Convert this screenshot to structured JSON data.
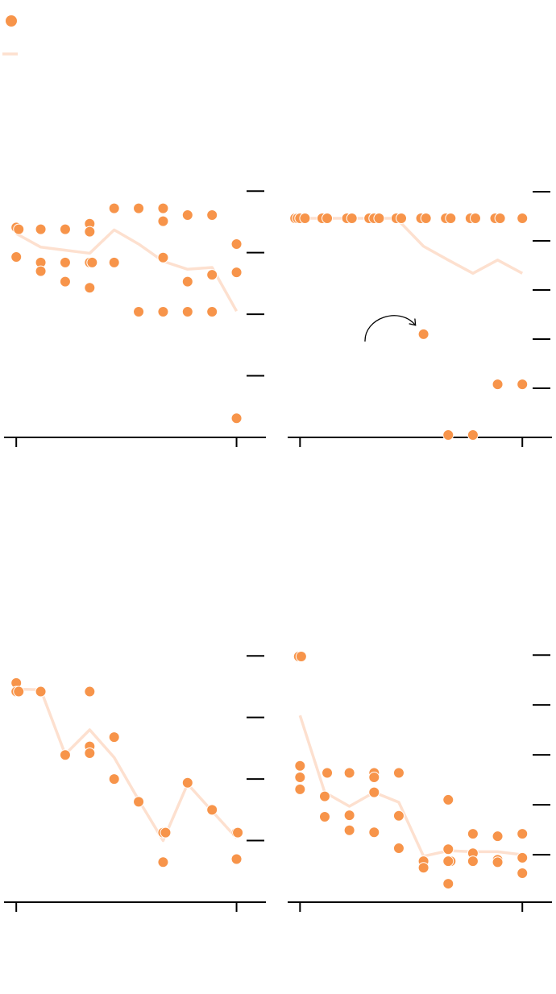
{
  "chart_data": [
    {
      "type": "scatter",
      "legend": "upper left",
      "xlim": [
        -0.5,
        10.2
      ],
      "xticks": [
        0,
        9
      ],
      "ylim": [
        -1,
        3.5
      ],
      "yticks": [
        0,
        1,
        2,
        3
      ],
      "series": [
        {
          "kind": "points",
          "color": "#f7944a",
          "x": [
            0,
            0.1,
            0,
            1,
            1,
            1,
            2,
            2,
            2,
            3,
            3,
            3,
            3.1,
            3,
            4,
            4,
            5,
            5,
            6,
            6,
            6,
            6,
            7,
            7,
            7,
            8,
            8,
            8,
            9,
            9,
            9
          ],
          "values": [
            2.41,
            2.38,
            1.93,
            2.38,
            1.84,
            1.7,
            2.38,
            1.84,
            1.53,
            2.47,
            2.34,
            1.84,
            1.84,
            1.43,
            2.72,
            1.84,
            2.72,
            1.04,
            2.72,
            2.51,
            1.92,
            1.04,
            2.61,
            1.53,
            1.04,
            2.61,
            1.64,
            1.04,
            2.14,
            1.68,
            -0.69
          ]
        },
        {
          "kind": "line",
          "color": "#fde0cf",
          "x": [
            0,
            1,
            2,
            3,
            4,
            5,
            6,
            7,
            8,
            9
          ],
          "values": [
            2.31,
            2.09,
            2.04,
            1.99,
            2.37,
            2.14,
            1.86,
            1.73,
            1.76,
            1.05
          ]
        }
      ]
    },
    {
      "type": "scatter",
      "xlim": [
        -0.5,
        10.2
      ],
      "xticks": [
        0,
        9
      ],
      "ylim": [
        -1,
        4.64
      ],
      "yticks": [
        0,
        1,
        2,
        3,
        4
      ],
      "series": [
        {
          "kind": "points",
          "color": "#f7944a",
          "x": [
            -0.2,
            -0.1,
            0,
            0.2,
            0.9,
            1.1,
            1.9,
            2.1,
            2.8,
            3,
            3.2,
            3.9,
            4.1,
            4.9,
            5.1,
            5.9,
            6.1,
            6.9,
            7.1,
            7.9,
            8.1,
            9,
            5,
            6,
            7,
            8,
            9
          ],
          "values": [
            3.46,
            3.46,
            3.46,
            3.46,
            3.46,
            3.46,
            3.46,
            3.46,
            3.46,
            3.46,
            3.46,
            3.46,
            3.46,
            3.46,
            3.46,
            3.46,
            3.46,
            3.46,
            3.46,
            3.46,
            3.46,
            3.46,
            1.1,
            -0.95,
            -0.95,
            0.08,
            0.08
          ]
        },
        {
          "kind": "line",
          "color": "#fde0cf",
          "x": [
            0,
            1,
            2,
            3,
            3.9,
            5,
            6,
            7,
            8,
            9
          ],
          "values": [
            3.46,
            3.46,
            3.46,
            3.46,
            3.46,
            2.89,
            2.61,
            2.34,
            2.61,
            2.34
          ]
        }
      ]
    },
    {
      "type": "scatter",
      "xlim": [
        -0.5,
        10.2
      ],
      "xticks": [
        0,
        9
      ],
      "ylim": [
        -1,
        3.5
      ],
      "yticks": [
        0,
        1,
        2,
        3
      ],
      "series": [
        {
          "kind": "points",
          "color": "#f7944a",
          "x": [
            0,
            0,
            0.1,
            1,
            2,
            3,
            3,
            3,
            4,
            4,
            5,
            6,
            6.1,
            6,
            7,
            8,
            9,
            9.05,
            9
          ],
          "values": [
            2.56,
            2.42,
            2.42,
            2.42,
            1.39,
            2.42,
            1.53,
            1.42,
            1.68,
            1.0,
            0.63,
            0.13,
            0.13,
            -0.35,
            0.94,
            0.5,
            0.13,
            0.13,
            -0.3
          ]
        },
        {
          "kind": "line",
          "color": "#fde0cf",
          "x": [
            0,
            1,
            2,
            3,
            4,
            5,
            6,
            7,
            8,
            9
          ],
          "values": [
            2.46,
            2.45,
            1.4,
            1.8,
            1.35,
            0.66,
            0.0,
            0.92,
            0.48,
            0.04
          ]
        }
      ]
    },
    {
      "type": "scatter",
      "xlim": [
        -0.5,
        10.2
      ],
      "xticks": [
        0,
        9
      ],
      "ylim": [
        -0.95,
        4.6
      ],
      "yticks": [
        0,
        1,
        2,
        3,
        4
      ],
      "series": [
        {
          "kind": "points",
          "color": "#f7944a",
          "x": [
            -0.05,
            0.05,
            0,
            0,
            0,
            1.1,
            1,
            1,
            2,
            2,
            2,
            3,
            3,
            3,
            3,
            4,
            4,
            4,
            5,
            5,
            6,
            6,
            6.1,
            6,
            6,
            7,
            7,
            7,
            8,
            8,
            8,
            9,
            9,
            9
          ],
          "values": [
            3.97,
            3.97,
            1.78,
            1.55,
            1.31,
            1.64,
            1.17,
            0.76,
            1.64,
            0.79,
            0.49,
            1.64,
            1.55,
            1.25,
            0.45,
            1.64,
            0.78,
            0.13,
            -0.13,
            -0.26,
            1.1,
            0.11,
            -0.13,
            -0.13,
            -0.58,
            0.42,
            0.03,
            -0.13,
            0.37,
            -0.1,
            -0.15,
            0.42,
            -0.06,
            -0.37
          ]
        },
        {
          "kind": "line",
          "color": "#fde0cf",
          "x": [
            0,
            1,
            2,
            3,
            4,
            5,
            6,
            7,
            8,
            9
          ],
          "values": [
            2.79,
            1.25,
            0.97,
            1.25,
            1.05,
            -0.03,
            0.08,
            0.06,
            0.06,
            0.0
          ]
        }
      ]
    }
  ]
}
